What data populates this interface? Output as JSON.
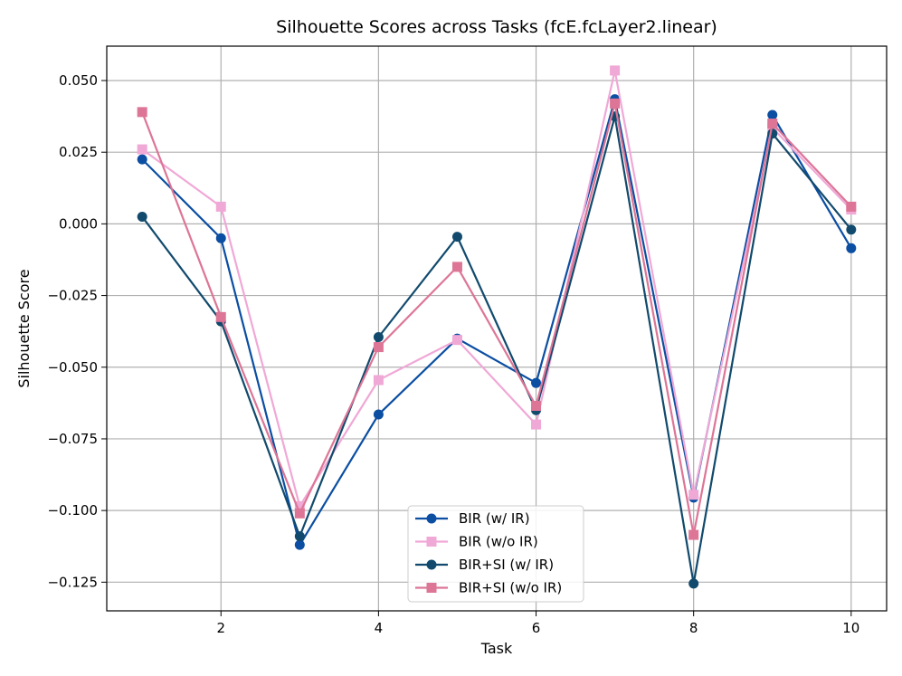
{
  "chart_data": {
    "type": "line",
    "title": "Silhouette Scores across Tasks (fcE.fcLayer2.linear)",
    "xlabel": "Task",
    "ylabel": "Silhouette Score",
    "x": [
      1,
      2,
      3,
      4,
      5,
      6,
      7,
      8,
      9,
      10
    ],
    "xticks": [
      2,
      4,
      6,
      8,
      10
    ],
    "xtick_labels": [
      "2",
      "4",
      "6",
      "8",
      "10"
    ],
    "yticks": [
      0.05,
      0.025,
      0.0,
      -0.025,
      -0.05,
      -0.075,
      -0.1,
      -0.125
    ],
    "ytick_labels": [
      "0.050",
      "0.025",
      "0.000",
      "−0.025",
      "−0.050",
      "−0.075",
      "−0.100",
      "−0.125"
    ],
    "xlim": [
      0.55,
      10.45
    ],
    "ylim": [
      -0.135,
      0.062
    ],
    "grid": true,
    "legend_position": "lower center",
    "series": [
      {
        "name": "BIR (w/ IR)",
        "color": "#0b4ea2",
        "marker": "circle",
        "values": [
          0.0225,
          -0.005,
          -0.112,
          -0.0665,
          -0.04,
          -0.0555,
          0.0435,
          -0.0955,
          0.038,
          -0.0085
        ]
      },
      {
        "name": "BIR (w/o IR)",
        "color": "#f0a8d6",
        "marker": "square",
        "values": [
          0.026,
          0.006,
          -0.0985,
          -0.0545,
          -0.0405,
          -0.07,
          0.0535,
          -0.0945,
          0.0335,
          0.005
        ]
      },
      {
        "name": "BIR+SI (w/ IR)",
        "color": "#114a6d",
        "marker": "circle",
        "values": [
          0.0025,
          -0.034,
          -0.109,
          -0.0395,
          -0.0045,
          -0.065,
          0.0375,
          -0.1255,
          0.0315,
          -0.002
        ]
      },
      {
        "name": "BIR+SI (w/o IR)",
        "color": "#dd7596",
        "marker": "square",
        "values": [
          0.039,
          -0.0325,
          -0.101,
          -0.043,
          -0.015,
          -0.0635,
          0.042,
          -0.1085,
          0.035,
          0.006
        ]
      }
    ]
  }
}
